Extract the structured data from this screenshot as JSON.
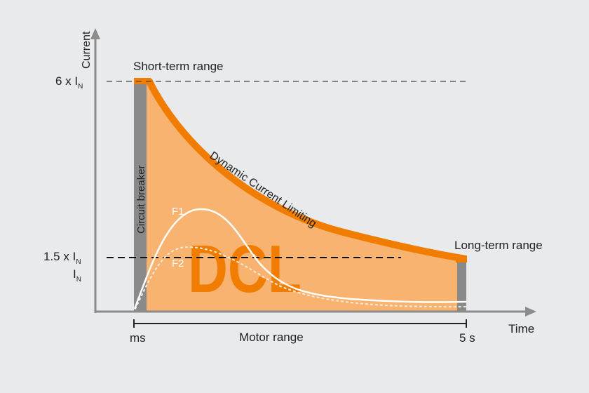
{
  "diagram": {
    "axes": {
      "y_label": "Current",
      "x_label": "Time",
      "y_ticks": {
        "six_in_prefix": "6 x I",
        "one_five_in_prefix": "1.5 x I",
        "in_prefix": "I",
        "subscript": "N"
      },
      "x_ticks": {
        "start": "ms",
        "end": "5 s"
      }
    },
    "labels": {
      "short_term": "Short-term range",
      "long_term": "Long-term range",
      "dynamic_curve": "Dynamic Current Limiting",
      "circuit_breaker": "Circuit breaker",
      "f1": "F1",
      "f2": "F2",
      "dcl": "DCL",
      "motor_range": "Motor range"
    },
    "colors": {
      "background": "#e9eaec",
      "orange": "#f07d00",
      "orange_fill": "#f9b371",
      "gray_bar": "#8a8a8a",
      "axis": "#8c8c8c"
    }
  }
}
